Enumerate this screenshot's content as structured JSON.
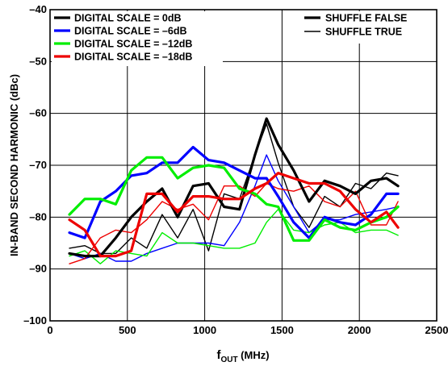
{
  "chart_data": {
    "type": "line",
    "xlabel": "f",
    "xlabel_sub": "OUT",
    "xlabel_unit": " (MHz)",
    "ylabel": "IN-BAND SECOND HARMONIC (dBc)",
    "xlim": [
      0,
      2500
    ],
    "ylim": [
      -100,
      -40
    ],
    "x_ticks": [
      0,
      500,
      1000,
      1500,
      2000,
      2500
    ],
    "y_ticks": [
      -100,
      -90,
      -80,
      -70,
      -60,
      -50,
      -40
    ],
    "x_tick_labels": [
      "0",
      "500",
      "1000",
      "1500",
      "2000",
      "2500"
    ],
    "y_tick_labels": [
      "–100",
      "–90",
      "–80",
      "–70",
      "–60",
      "–50",
      "–40"
    ],
    "grid": true,
    "legend_scale": [
      {
        "label": "DIGITAL SCALE = 0dB",
        "color": "#000000"
      },
      {
        "label": "DIGITAL SCALE = –6dB",
        "color": "#0000ff"
      },
      {
        "label": "DIGITAL SCALE = –12dB",
        "color": "#00ee00"
      },
      {
        "label": "DIGITAL SCALE = –18dB",
        "color": "#ee0000"
      }
    ],
    "legend_style": [
      {
        "label": "SHUFFLE FALSE",
        "style": "thick"
      },
      {
        "label": "SHUFFLE TRUE",
        "style": "thin"
      }
    ],
    "x": [
      125,
      225,
      325,
      425,
      525,
      625,
      725,
      825,
      925,
      1025,
      1125,
      1225,
      1325,
      1400,
      1475,
      1575,
      1675,
      1775,
      1875,
      1975,
      2075,
      2175,
      2250
    ],
    "series": [
      {
        "scale": "0dB",
        "shuffle": "false",
        "color": "#000000",
        "values": [
          -87,
          -87.5,
          -87.5,
          -84,
          -80,
          -77,
          -74.5,
          -80,
          -74,
          -73.5,
          -78,
          -78.5,
          -68,
          -61,
          -66,
          -71,
          -77,
          -73,
          -74,
          -75.5,
          -73,
          -72.5,
          -74
        ]
      },
      {
        "scale": "0dB",
        "shuffle": "true",
        "color": "#000000",
        "values": [
          -86,
          -85.5,
          -87,
          -87,
          -84,
          -86,
          -79.5,
          -84,
          -78.5,
          -86.5,
          -75.5,
          -76.5,
          -68,
          -62,
          -69.5,
          -78,
          -82,
          -76,
          -78,
          -73.5,
          -74.5,
          -71.5,
          -72
        ]
      },
      {
        "scale": "–6dB",
        "shuffle": "false",
        "color": "#0000ff",
        "values": [
          -83,
          -84,
          -77,
          -75,
          -72,
          -71.5,
          -69.5,
          -69.5,
          -66.5,
          -69,
          -69.5,
          -71,
          -72.5,
          -72.5,
          -76,
          -81,
          -84,
          -80,
          -81,
          -81.5,
          -79.5,
          -75.5,
          -75.5
        ]
      },
      {
        "scale": "–6dB",
        "shuffle": "true",
        "color": "#0000ff",
        "values": [
          -87,
          -88,
          -87,
          -88.5,
          -88.5,
          -87,
          -86,
          -85,
          -85,
          -85,
          -85.5,
          -81,
          -74,
          -68,
          -73,
          -78,
          -83,
          -80.5,
          -80.5,
          -79.5,
          -79,
          -78.5,
          -78
        ]
      },
      {
        "scale": "–12dB",
        "shuffle": "false",
        "color": "#00ee00",
        "values": [
          -79.5,
          -76.5,
          -76.5,
          -77.5,
          -71,
          -68.5,
          -68.5,
          -72.5,
          -70.5,
          -70,
          -70.5,
          -74.5,
          -75.5,
          -77.5,
          -78,
          -84.5,
          -84.5,
          -80.5,
          -82,
          -82.5,
          -81,
          -80,
          -78
        ]
      },
      {
        "scale": "–12dB",
        "shuffle": "true",
        "color": "#00ee00",
        "values": [
          -87.5,
          -86.5,
          -89,
          -86.5,
          -87,
          -87.5,
          -83,
          -85,
          -85,
          -85.5,
          -86,
          -86,
          -85,
          -81,
          -78.5,
          -82.5,
          -83,
          -81.5,
          -81,
          -83,
          -82.5,
          -82.5,
          -83.5
        ]
      },
      {
        "scale": "–18dB",
        "shuffle": "false",
        "color": "#ee0000",
        "values": [
          -80.5,
          -82.5,
          -87.5,
          -87.5,
          -86.5,
          -75.5,
          -75.5,
          -79,
          -76,
          -76,
          -76.5,
          -76.5,
          -74.5,
          -73.5,
          -71.5,
          -72.5,
          -73.5,
          -73.5,
          -75,
          -78.5,
          -81,
          -79,
          -82
        ]
      },
      {
        "scale": "–18dB",
        "shuffle": "true",
        "color": "#ee0000",
        "values": [
          -89,
          -88,
          -84,
          -82.5,
          -83,
          -80.5,
          -77,
          -78.5,
          -77.5,
          -80.5,
          -74,
          -74,
          -76,
          -73.5,
          -74.5,
          -75,
          -74,
          -77,
          -78,
          -75,
          -81.5,
          -81.5,
          -77
        ]
      }
    ]
  }
}
